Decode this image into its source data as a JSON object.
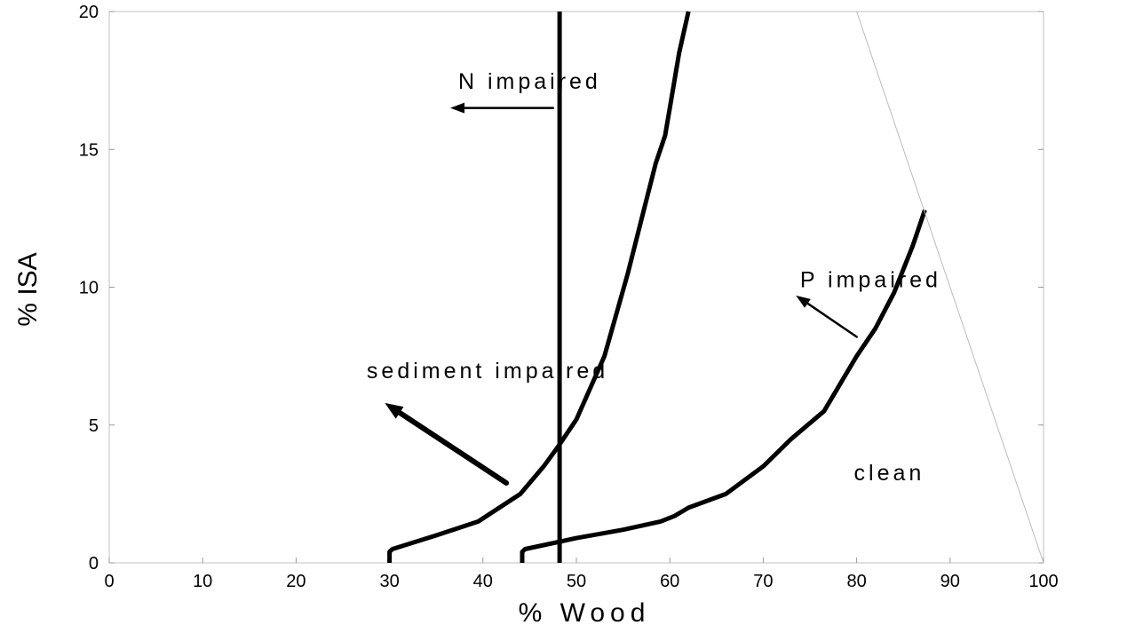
{
  "chart_data": {
    "type": "line",
    "xlabel": "% Wood",
    "ylabel": "% ISA",
    "xlim": [
      0,
      100
    ],
    "ylim": [
      0,
      20
    ],
    "xticks": [
      0,
      10,
      20,
      30,
      40,
      50,
      60,
      70,
      80,
      90,
      100
    ],
    "yticks": [
      0,
      5,
      10,
      15,
      20
    ],
    "grid": false,
    "series": [
      {
        "x": [
          30,
          30,
          30.3,
          35,
          39.5,
          44,
          46.5,
          48,
          50,
          53,
          55.5,
          57,
          58.5,
          59.5,
          60,
          61,
          62
        ],
        "y": [
          0,
          0.4,
          0.5,
          1,
          1.5,
          2.5,
          3.5,
          4.2,
          5.2,
          7.5,
          10.5,
          12.5,
          14.5,
          15.5,
          16.5,
          18.5,
          20
        ],
        "color": "#000000"
      },
      {
        "x": [
          44.2,
          44.2,
          44.5,
          50,
          55,
          59,
          60.5,
          62,
          66,
          70,
          73,
          76.5,
          80,
          82,
          84,
          86,
          87.3
        ],
        "y": [
          0,
          0.4,
          0.5,
          0.9,
          1.2,
          1.5,
          1.7,
          2,
          2.5,
          3.5,
          4.5,
          5.5,
          7.5,
          8.5,
          9.8,
          11.5,
          12.8
        ],
        "color": "#000000"
      },
      {
        "x": [
          48.2,
          48.2
        ],
        "y": [
          0,
          20
        ],
        "color": "#000000"
      },
      {
        "x": [
          80,
          100
        ],
        "y": [
          20,
          0
        ],
        "color": "#bbbbbb"
      }
    ],
    "annotations": [
      {
        "text": "N impaired",
        "x": 45,
        "y": 17.2
      },
      {
        "text": "P impaired",
        "x": 81.5,
        "y": 10
      },
      {
        "text": "sediment impaired",
        "x": 40.5,
        "y": 6.7
      },
      {
        "text": "clean",
        "x": 83.5,
        "y": 3
      }
    ],
    "arrows": [
      {
        "from": [
          47.5,
          16.5
        ],
        "to": [
          36.5,
          16.5
        ],
        "weight": "thin"
      },
      {
        "from": [
          80,
          8.2
        ],
        "to": [
          73.5,
          9.7
        ],
        "weight": "thin"
      },
      {
        "from": [
          42.5,
          2.9
        ],
        "to": [
          29.5,
          5.8
        ],
        "weight": "thick"
      }
    ]
  }
}
